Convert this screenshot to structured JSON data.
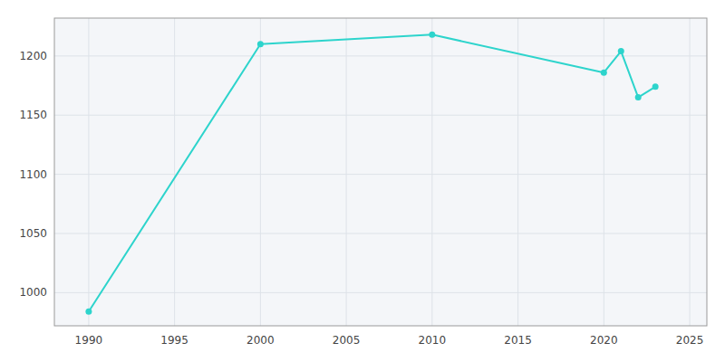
{
  "chart_data": {
    "type": "line",
    "x": [
      1990,
      2000,
      2010,
      2020,
      2021,
      2022,
      2023
    ],
    "values": [
      984,
      1210,
      1218,
      1186,
      1204,
      1165,
      1174
    ],
    "color": "#2dd4cc",
    "marker": "circle",
    "xlim": [
      1988,
      2026
    ],
    "ylim": [
      972,
      1232
    ],
    "xticks": [
      1990,
      1995,
      2000,
      2005,
      2010,
      2015,
      2020,
      2025
    ],
    "yticks": [
      1000,
      1050,
      1100,
      1150,
      1200
    ],
    "grid": true
  }
}
